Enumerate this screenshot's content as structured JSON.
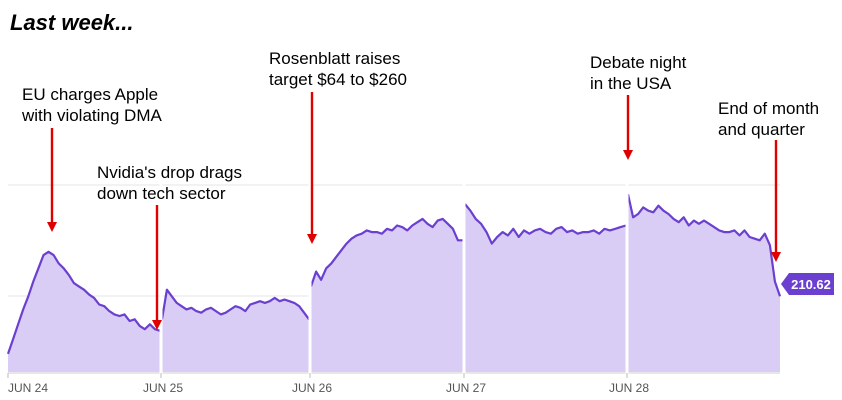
{
  "heading": "Last week...",
  "annotations": [
    "EU charges Apple\nwith violating DMA",
    "Nvidia's drop drags\ndown tech sector",
    "Rosenblatt raises\ntarget $64 to $260",
    "Debate night\nin the USA",
    "End of month\nand quarter"
  ],
  "colors": {
    "line": "#6b3fcf",
    "fill": "#d9cdf5",
    "badge": "#6b3fcf",
    "arrow": "#e00000",
    "grid": "#e4e4e4",
    "tick_label": "#555555"
  },
  "chart_data": {
    "type": "area",
    "x_tick_labels": [
      "JUN 24",
      "JUN 25",
      "JUN 26",
      "JUN 27",
      "JUN 28"
    ],
    "y_range": [
      206,
      219
    ],
    "last_value_label": "210.62",
    "gridlines": true,
    "series": [
      {
        "day": "JUN 24",
        "values": [
          207.1,
          208.0,
          208.9,
          209.8,
          210.6,
          211.5,
          212.3,
          213.1,
          213.3,
          213.1,
          212.6,
          212.3,
          211.9,
          211.4,
          211.2,
          211.0,
          210.7,
          210.5,
          210.1,
          210.0,
          209.7,
          209.5,
          209.4,
          209.5,
          209.1,
          209.2,
          208.8,
          208.6,
          208.9,
          208.6,
          208.5
        ]
      },
      {
        "day": "JUN 25",
        "values": [
          209.2,
          211.0,
          210.6,
          210.2,
          210.0,
          209.8,
          209.9,
          209.7,
          209.6,
          209.8,
          209.9,
          209.7,
          209.5,
          209.6,
          209.8,
          210.0,
          209.9,
          209.7,
          210.1,
          210.2,
          210.3,
          210.2,
          210.3,
          210.5,
          210.3,
          210.4,
          210.3,
          210.2,
          210.0,
          209.6,
          209.2
        ]
      },
      {
        "day": "JUN 26",
        "values": [
          211.2,
          212.1,
          211.6,
          212.3,
          212.6,
          213.0,
          213.4,
          213.8,
          214.1,
          214.3,
          214.4,
          214.6,
          214.5,
          214.5,
          214.4,
          214.7,
          214.6,
          214.9,
          214.8,
          214.6,
          214.9,
          215.1,
          215.3,
          215.0,
          214.8,
          215.2,
          215.3,
          215.0,
          214.7,
          214.0,
          214.0
        ]
      },
      {
        "day": "JUN 27",
        "values": [
          216.2,
          215.8,
          215.3,
          215.0,
          214.5,
          213.8,
          214.2,
          214.5,
          214.3,
          214.7,
          214.2,
          214.6,
          214.4,
          214.6,
          214.7,
          214.5,
          214.4,
          214.7,
          214.8,
          214.5,
          214.6,
          214.4,
          214.5,
          214.5,
          214.6,
          214.4,
          214.7,
          214.6,
          214.7,
          214.8,
          214.9
        ]
      },
      {
        "day": "JUN 28",
        "values": [
          216.8,
          215.4,
          215.6,
          216.0,
          215.8,
          215.7,
          216.1,
          215.8,
          215.6,
          215.3,
          215.1,
          215.4,
          214.9,
          215.2,
          215.0,
          215.2,
          215.0,
          214.8,
          214.6,
          214.5,
          214.5,
          214.6,
          214.3,
          214.6,
          214.2,
          214.1,
          214.0,
          214.4,
          213.7,
          211.5,
          210.6
        ]
      }
    ]
  }
}
